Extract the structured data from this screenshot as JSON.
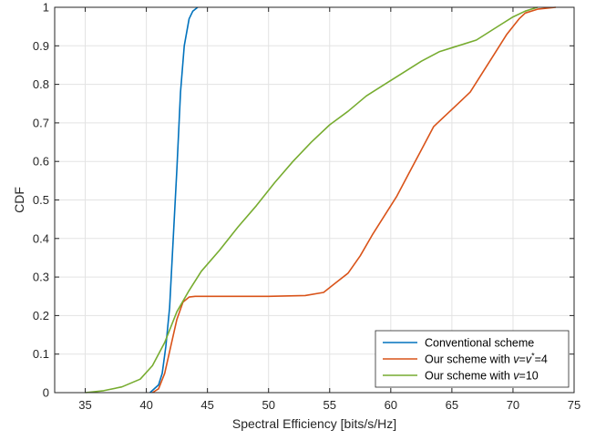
{
  "chart_data": {
    "type": "line",
    "xlabel": "Spectral Efficiency [bits/s/Hz]",
    "ylabel": "CDF",
    "xlim": [
      32.5,
      75
    ],
    "ylim": [
      0,
      1
    ],
    "xticks": [
      35,
      40,
      45,
      50,
      55,
      60,
      65,
      70,
      75
    ],
    "yticks": [
      0,
      0.1,
      0.2,
      0.3,
      0.4,
      0.5,
      0.6,
      0.7,
      0.8,
      0.9,
      1
    ],
    "grid": true,
    "legend_position": "bottom-right",
    "series": [
      {
        "name": "Conventional scheme",
        "legend_parts": [
          {
            "text": "Conventional scheme",
            "italic": false
          }
        ],
        "color": "#0072BD",
        "x": [
          40.3,
          41.0,
          41.3,
          41.6,
          41.9,
          42.2,
          42.5,
          42.8,
          43.1,
          43.5,
          43.8,
          44.2
        ],
        "y": [
          0.0,
          0.02,
          0.05,
          0.12,
          0.22,
          0.4,
          0.58,
          0.78,
          0.9,
          0.97,
          0.99,
          1.0
        ]
      },
      {
        "name": "Our scheme with v=v*=4",
        "legend_parts": [
          {
            "text": "Our scheme with ",
            "italic": false
          },
          {
            "text": "v",
            "italic": true
          },
          {
            "text": "=",
            "italic": false
          },
          {
            "text": "v",
            "italic": true
          },
          {
            "text": "*",
            "italic": false,
            "superscript": true
          },
          {
            "text": "=4",
            "italic": false
          }
        ],
        "color": "#D95319",
        "x": [
          40.5,
          41.0,
          41.5,
          42.0,
          42.5,
          43.0,
          43.5,
          44.0,
          46.0,
          50.0,
          53.0,
          54.5,
          55.5,
          56.5,
          57.5,
          58.5,
          59.5,
          60.5,
          61.5,
          62.5,
          63.5,
          64.5,
          65.5,
          66.5,
          67.5,
          68.5,
          69.5,
          70.5,
          71.0,
          72.0,
          73.5
        ],
        "y": [
          0.0,
          0.01,
          0.05,
          0.12,
          0.19,
          0.235,
          0.248,
          0.25,
          0.25,
          0.25,
          0.252,
          0.26,
          0.285,
          0.31,
          0.355,
          0.41,
          0.46,
          0.51,
          0.57,
          0.63,
          0.69,
          0.72,
          0.75,
          0.78,
          0.83,
          0.88,
          0.93,
          0.97,
          0.985,
          0.995,
          1.0
        ]
      },
      {
        "name": "Our scheme with v=10",
        "legend_parts": [
          {
            "text": "Our scheme with ",
            "italic": false
          },
          {
            "text": "v",
            "italic": true
          },
          {
            "text": "=10",
            "italic": false
          }
        ],
        "color": "#77AC30",
        "x": [
          35.0,
          36.5,
          38.0,
          39.5,
          40.5,
          41.5,
          42.5,
          43.5,
          44.5,
          46.0,
          47.5,
          49.0,
          50.5,
          52.0,
          53.5,
          55.0,
          56.5,
          58.0,
          59.5,
          61.0,
          62.5,
          64.0,
          65.5,
          67.0,
          68.0,
          69.0,
          70.0,
          71.0,
          72.0
        ],
        "y": [
          0.0,
          0.005,
          0.015,
          0.035,
          0.07,
          0.13,
          0.21,
          0.265,
          0.315,
          0.37,
          0.43,
          0.485,
          0.545,
          0.6,
          0.65,
          0.695,
          0.73,
          0.77,
          0.8,
          0.83,
          0.86,
          0.885,
          0.9,
          0.915,
          0.935,
          0.955,
          0.975,
          0.99,
          1.0
        ]
      }
    ]
  }
}
